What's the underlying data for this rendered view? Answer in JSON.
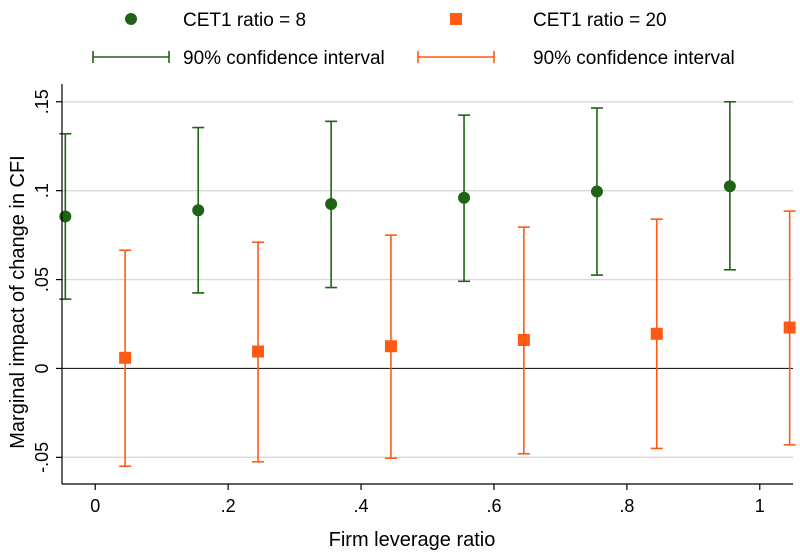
{
  "chart_data": {
    "type": "scatter",
    "xlabel": "Firm leverage ratio",
    "ylabel": "Marginal impact of change in CFI",
    "xlim": [
      -0.05,
      1.05
    ],
    "ylim": [
      -0.065,
      0.16
    ],
    "xticks": [
      0,
      0.2,
      0.4,
      0.6,
      0.8,
      1
    ],
    "xtick_labels": [
      "0",
      ".2",
      ".4",
      ".6",
      ".8",
      "1"
    ],
    "yticks": [
      -0.05,
      0,
      0.05,
      0.1,
      0.15
    ],
    "ytick_labels": [
      "-.05",
      "0",
      ".05",
      ".1",
      ".15"
    ],
    "grid": true,
    "zero_line": true,
    "legend_position": "top",
    "series": [
      {
        "name": "CET1 ratio = 8",
        "marker": "circle",
        "color": "#1e6414",
        "x": [
          -0.045,
          0.155,
          0.355,
          0.555,
          0.755,
          0.955
        ],
        "y": [
          0.0855,
          0.089,
          0.0925,
          0.096,
          0.0995,
          0.1025
        ],
        "ci_low": [
          0.039,
          0.0425,
          0.0455,
          0.049,
          0.0525,
          0.0555
        ],
        "ci_high": [
          0.132,
          0.1355,
          0.139,
          0.1425,
          0.1465,
          0.15
        ]
      },
      {
        "name": "CET1 ratio = 20",
        "marker": "square",
        "color": "#ff5a14",
        "x": [
          0.045,
          0.245,
          0.445,
          0.645,
          0.845,
          1.045
        ],
        "y": [
          0.006,
          0.0095,
          0.0125,
          0.016,
          0.0195,
          0.023
        ],
        "ci_low": [
          -0.055,
          -0.0525,
          -0.0505,
          -0.048,
          -0.045,
          -0.043
        ],
        "ci_high": [
          0.0665,
          0.071,
          0.075,
          0.0795,
          0.084,
          0.0885
        ]
      }
    ],
    "legend": [
      {
        "label": "CET1 ratio = 8",
        "symbol": "circle",
        "color": "#1e6414"
      },
      {
        "label": "CET1 ratio = 20",
        "symbol": "square",
        "color": "#ff5a14"
      },
      {
        "label": "90% confidence interval",
        "symbol": "range",
        "color": "#1e6414"
      },
      {
        "label": "90% confidence interval",
        "symbol": "range",
        "color": "#ff5a14"
      }
    ]
  }
}
